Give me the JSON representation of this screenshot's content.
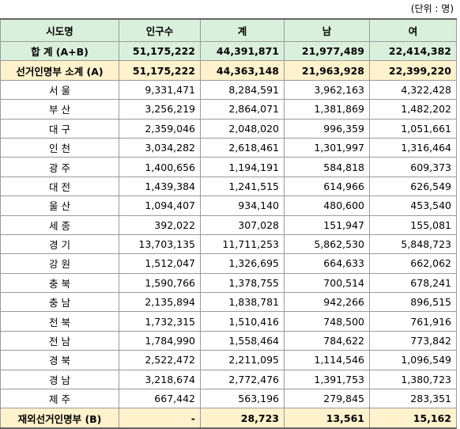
{
  "unit_note": "(단위 : 명)",
  "table": {
    "header": [
      "시도명",
      "인구수",
      "계",
      "남",
      "여"
    ],
    "rows": [
      [
        "합 계 (A+B)",
        "51,175,222",
        "44,391,871",
        "21,977,489",
        "22,414,382"
      ],
      [
        "선거인명부 소계 (A)",
        "51,175,222",
        "44,363,148",
        "21,963,928",
        "22,399,220"
      ],
      [
        "서 울",
        "9,331,471",
        "8,284,591",
        "3,962,163",
        "4,322,428"
      ],
      [
        "부 산",
        "3,256,219",
        "2,864,071",
        "1,381,869",
        "1,482,202"
      ],
      [
        "대 구",
        "2,359,046",
        "2,048,020",
        "996,359",
        "1,051,661"
      ],
      [
        "인 천",
        "3,034,282",
        "2,618,461",
        "1,301,997",
        "1,316,464"
      ],
      [
        "광 주",
        "1,400,656",
        "1,194,191",
        "584,818",
        "609,373"
      ],
      [
        "대 전",
        "1,439,384",
        "1,241,515",
        "614,966",
        "626,549"
      ],
      [
        "울 산",
        "1,094,407",
        "934,140",
        "480,600",
        "453,540"
      ],
      [
        "세 종",
        "392,022",
        "307,028",
        "151,947",
        "155,081"
      ],
      [
        "경 기",
        "13,703,135",
        "11,711,253",
        "5,862,530",
        "5,848,723"
      ],
      [
        "강 원",
        "1,512,047",
        "1,326,695",
        "664,633",
        "662,062"
      ],
      [
        "충 북",
        "1,590,766",
        "1,378,755",
        "700,514",
        "678,241"
      ],
      [
        "충 남",
        "2,135,894",
        "1,838,781",
        "942,266",
        "896,515"
      ],
      [
        "전 북",
        "1,732,315",
        "1,510,416",
        "748,500",
        "761,916"
      ],
      [
        "전 남",
        "1,784,990",
        "1,558,464",
        "784,622",
        "773,842"
      ],
      [
        "경 북",
        "2,522,472",
        "2,211,095",
        "1,114,546",
        "1,096,549"
      ],
      [
        "경 남",
        "3,218,674",
        "2,772,476",
        "1,391,753",
        "1,380,723"
      ],
      [
        "제 주",
        "667,442",
        "563,196",
        "279,845",
        "283,351"
      ],
      [
        "재외선거인명부 (B)",
        "-",
        "28,723",
        "13,561",
        "15,162"
      ]
    ]
  }
}
